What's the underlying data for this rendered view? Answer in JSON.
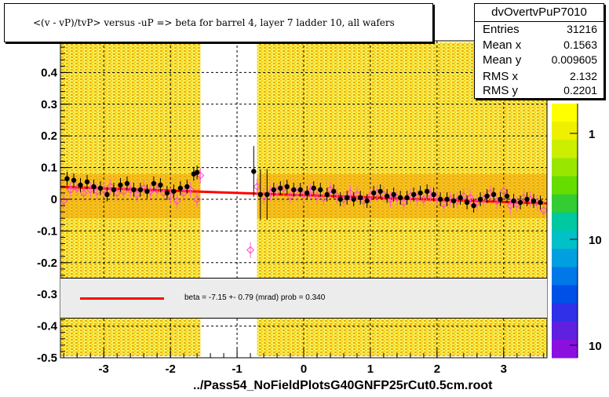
{
  "title": "<(v - vP)/tvP> versus  -uP => beta for barrel 4, layer 7 ladder 10, all wafers",
  "footer": "../Pass54_NoFieldPlotsG40GNFP25rCut0.5cm.root",
  "stats": {
    "name": "dvOvertvPuP7010",
    "rows": [
      {
        "label": "Entries",
        "value": "31216"
      },
      {
        "label": "Mean x",
        "value": "0.1563"
      },
      {
        "label": "Mean y",
        "value": "0.009605"
      },
      {
        "label": "RMS x",
        "value": "2.132"
      },
      {
        "label": "RMS y",
        "value": "0.2201"
      }
    ]
  },
  "legend": {
    "text": "beta =   -7.15 +-  0.79 (mrad) prob = 0.340",
    "color": "#ff0000"
  },
  "z_axis": {
    "labels": [
      "1",
      "10",
      "10"
    ],
    "colors": [
      "#ffff00",
      "#eef000",
      "#ccee00",
      "#99e600",
      "#66dd00",
      "#33cc33",
      "#00c8a0",
      "#00c0c8",
      "#00a0e0",
      "#0078e8",
      "#0050e8",
      "#3030e8",
      "#6020e0",
      "#8a10e0"
    ]
  },
  "chart_data": {
    "type": "scatter",
    "xlim": [
      -3.65,
      3.65
    ],
    "ylim": [
      -0.5,
      0.5
    ],
    "x_ticks": [
      -3,
      -2,
      -1,
      0,
      1,
      2,
      3
    ],
    "y_ticks": [
      -0.5,
      -0.4,
      -0.3,
      -0.2,
      -0.1,
      0,
      0.1,
      0.2,
      0.3,
      0.4
    ],
    "y_tick_labels": [
      "-0.5",
      "-0.4",
      "-0.3",
      "-0.2",
      "-0.1",
      "0",
      "0.1",
      "0.2",
      "0.3",
      "0.4"
    ],
    "x_tick_labels": [
      "-3",
      "-2",
      "-1",
      "0",
      "1",
      "2",
      "3"
    ],
    "grid": true,
    "gap_x": [
      -1.55,
      -0.7
    ],
    "fit_line": {
      "x": [
        -3.65,
        3.65
      ],
      "y": [
        0.039,
        -0.013
      ]
    },
    "profile_black": {
      "x": [
        -3.55,
        -3.45,
        -3.35,
        -3.25,
        -3.15,
        -3.05,
        -2.95,
        -2.85,
        -2.75,
        -2.65,
        -2.55,
        -2.45,
        -2.35,
        -2.25,
        -2.15,
        -2.05,
        -1.95,
        -1.85,
        -1.75,
        -1.65,
        -1.6,
        -0.75,
        -0.65,
        -0.55,
        -0.45,
        -0.35,
        -0.25,
        -0.15,
        -0.05,
        0.05,
        0.15,
        0.25,
        0.35,
        0.45,
        0.55,
        0.65,
        0.75,
        0.85,
        0.95,
        1.05,
        1.15,
        1.25,
        1.35,
        1.45,
        1.55,
        1.65,
        1.75,
        1.85,
        1.95,
        2.05,
        2.15,
        2.25,
        2.35,
        2.45,
        2.55,
        2.65,
        2.75,
        2.85,
        2.95,
        3.05,
        3.15,
        3.25,
        3.35,
        3.45,
        3.55
      ],
      "y": [
        0.065,
        0.06,
        0.045,
        0.055,
        0.04,
        0.035,
        0.015,
        0.03,
        0.045,
        0.05,
        0.03,
        0.03,
        0.025,
        0.05,
        0.045,
        0.02,
        0.025,
        0.035,
        0.04,
        0.08,
        0.085,
        0.088,
        0.015,
        0.015,
        0.03,
        0.035,
        0.04,
        0.03,
        0.03,
        0.02,
        0.035,
        0.03,
        0.015,
        0.025,
        0.0,
        0.005,
        0.0,
        0.005,
        -0.005,
        0.02,
        0.025,
        0.01,
        0.015,
        0.005,
        0.005,
        0.015,
        0.02,
        0.025,
        0.015,
        0.0,
        0.0,
        -0.005,
        0.005,
        -0.01,
        -0.02,
        0.0,
        0.01,
        0.015,
        0.0,
        0.01,
        -0.005,
        -0.01,
        0.0,
        -0.005,
        -0.01
      ]
    },
    "profile_pink": {
      "x": [
        -3.6,
        -3.5,
        -3.4,
        -3.3,
        -3.2,
        -3.1,
        -3.0,
        -2.9,
        -2.8,
        -2.7,
        -2.6,
        -2.5,
        -2.4,
        -2.3,
        -2.2,
        -2.1,
        -2.0,
        -1.9,
        -1.8,
        -1.7,
        -1.6,
        -1.55,
        -0.8,
        -0.7,
        -0.6,
        -0.5,
        -0.4,
        -0.3,
        -0.2,
        -0.1,
        0.0,
        0.1,
        0.2,
        0.3,
        0.4,
        0.5,
        0.6,
        0.7,
        0.8,
        0.9,
        1.0,
        1.1,
        1.2,
        1.3,
        1.4,
        1.5,
        1.6,
        1.7,
        1.8,
        1.9,
        2.0,
        2.1,
        2.2,
        2.3,
        2.4,
        2.5,
        2.6,
        2.7,
        2.8,
        2.9,
        3.0,
        3.1,
        3.2,
        3.3,
        3.4,
        3.5,
        3.6
      ],
      "y": [
        -0.005,
        0.03,
        0.035,
        0.02,
        0.03,
        0.025,
        0.03,
        0.04,
        0.02,
        0.025,
        0.03,
        0.015,
        0.035,
        0.025,
        0.03,
        0.02,
        0.01,
        -0.005,
        0.02,
        0.03,
        0.0,
        0.075,
        -0.16,
        0.04,
        0.01,
        0.02,
        0.025,
        0.035,
        0.01,
        0.02,
        0.015,
        0.025,
        0.01,
        0.005,
        0.03,
        0.01,
        0.0,
        0.02,
        0.015,
        -0.005,
        0.01,
        0.02,
        0.015,
        0.0,
        0.005,
        -0.01,
        0.01,
        0.005,
        0.0,
        0.015,
        0.005,
        -0.015,
        0.0,
        -0.005,
        0.01,
        0.005,
        -0.01,
        0.0,
        0.02,
        -0.005,
        0.025,
        -0.02,
        -0.015,
        0.005,
        0.0,
        -0.01,
        -0.035
      ]
    }
  }
}
